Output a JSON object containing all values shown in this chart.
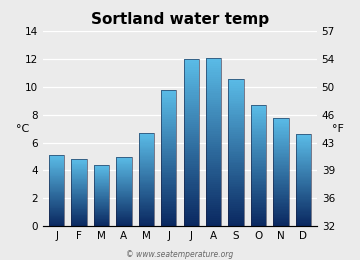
{
  "title": "Sortland water temp",
  "months": [
    "J",
    "F",
    "M",
    "A",
    "M",
    "J",
    "J",
    "A",
    "S",
    "O",
    "N",
    "D"
  ],
  "values_c": [
    5.1,
    4.8,
    4.4,
    5.0,
    6.7,
    9.8,
    12.0,
    12.1,
    10.6,
    8.7,
    7.8,
    6.6
  ],
  "ylabel_left": "°C",
  "ylabel_right": "°F",
  "ylim_c": [
    0,
    14
  ],
  "yticks_c": [
    0,
    2,
    4,
    6,
    8,
    10,
    12,
    14
  ],
  "yticks_f": [
    32,
    36,
    39,
    43,
    46,
    50,
    54,
    57
  ],
  "bar_color_top": "#5bbde8",
  "bar_color_bottom": "#0a2860",
  "background_color": "#ebebeb",
  "grid_color": "#ffffff",
  "title_fontsize": 11,
  "tick_fontsize": 7.5,
  "label_fontsize": 8,
  "watermark": "© www.seatemperature.org"
}
